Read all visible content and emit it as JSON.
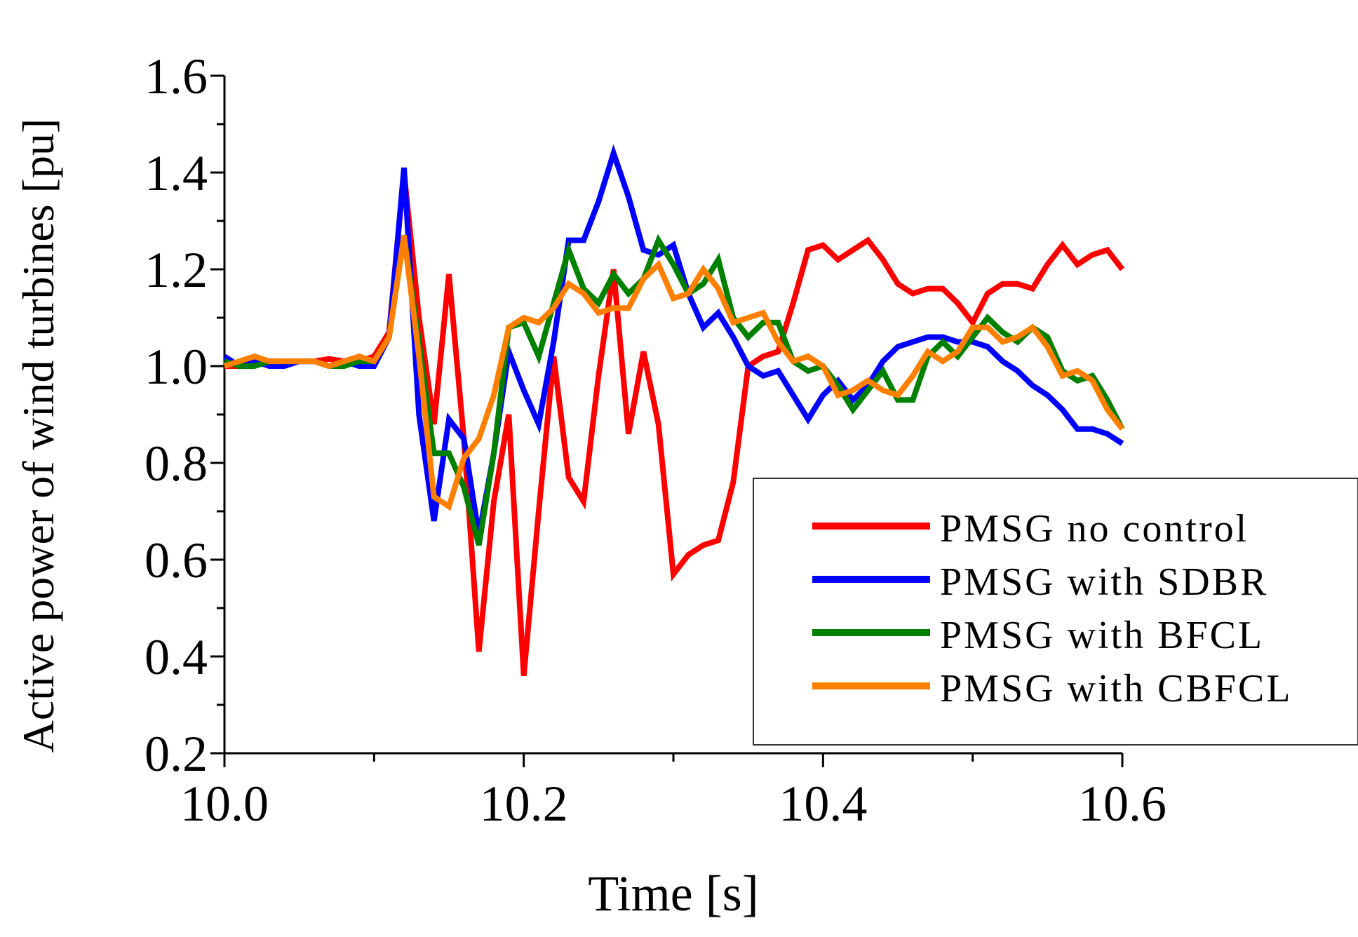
{
  "chart_data": {
    "type": "line",
    "xlabel": "Time [s]",
    "ylabel": "Active power of wind turbines [pu]",
    "xlim": [
      10.0,
      10.6
    ],
    "ylim": [
      0.2,
      1.6
    ],
    "x_ticks": [
      "10.0",
      "10.2",
      "10.4",
      "10.6"
    ],
    "y_ticks": [
      "0.2",
      "0.4",
      "0.6",
      "0.8",
      "1.0",
      "1.2",
      "1.4",
      "1.6"
    ],
    "legend_position": "bottom-right",
    "grid": false,
    "series": [
      {
        "name": "PMSG no control",
        "color": "#ff0000",
        "points": [
          [
            10.0,
            1.0
          ],
          [
            10.01,
            1.0
          ],
          [
            10.02,
            1.01
          ],
          [
            10.03,
            1.01
          ],
          [
            10.04,
            1.01
          ],
          [
            10.05,
            1.01
          ],
          [
            10.06,
            1.01
          ],
          [
            10.07,
            1.015
          ],
          [
            10.08,
            1.01
          ],
          [
            10.09,
            1.01
          ],
          [
            10.1,
            1.02
          ],
          [
            10.11,
            1.07
          ],
          [
            10.12,
            1.4
          ],
          [
            10.13,
            1.1
          ],
          [
            10.14,
            0.88
          ],
          [
            10.15,
            1.19
          ],
          [
            10.16,
            0.85
          ],
          [
            10.17,
            0.41
          ],
          [
            10.18,
            0.72
          ],
          [
            10.19,
            0.9
          ],
          [
            10.2,
            0.36
          ],
          [
            10.21,
            0.7
          ],
          [
            10.22,
            1.02
          ],
          [
            10.23,
            0.77
          ],
          [
            10.24,
            0.72
          ],
          [
            10.25,
            0.98
          ],
          [
            10.26,
            1.2
          ],
          [
            10.27,
            0.86
          ],
          [
            10.28,
            1.03
          ],
          [
            10.29,
            0.88
          ],
          [
            10.3,
            0.57
          ],
          [
            10.31,
            0.61
          ],
          [
            10.32,
            0.63
          ],
          [
            10.33,
            0.64
          ],
          [
            10.34,
            0.76
          ],
          [
            10.35,
            1.0
          ],
          [
            10.36,
            1.02
          ],
          [
            10.37,
            1.03
          ],
          [
            10.38,
            1.13
          ],
          [
            10.39,
            1.24
          ],
          [
            10.4,
            1.25
          ],
          [
            10.41,
            1.22
          ],
          [
            10.42,
            1.24
          ],
          [
            10.43,
            1.26
          ],
          [
            10.44,
            1.22
          ],
          [
            10.45,
            1.17
          ],
          [
            10.46,
            1.15
          ],
          [
            10.47,
            1.16
          ],
          [
            10.48,
            1.16
          ],
          [
            10.49,
            1.13
          ],
          [
            10.5,
            1.09
          ],
          [
            10.51,
            1.15
          ],
          [
            10.52,
            1.17
          ],
          [
            10.53,
            1.17
          ],
          [
            10.54,
            1.16
          ],
          [
            10.55,
            1.21
          ],
          [
            10.56,
            1.25
          ],
          [
            10.57,
            1.21
          ],
          [
            10.58,
            1.23
          ],
          [
            10.59,
            1.24
          ],
          [
            10.6,
            1.2
          ]
        ]
      },
      {
        "name": "PMSG with SDBR",
        "color": "#0000ff",
        "points": [
          [
            10.0,
            1.02
          ],
          [
            10.01,
            1.0
          ],
          [
            10.02,
            1.01
          ],
          [
            10.03,
            1.0
          ],
          [
            10.04,
            1.0
          ],
          [
            10.05,
            1.01
          ],
          [
            10.06,
            1.01
          ],
          [
            10.07,
            1.0
          ],
          [
            10.08,
            1.01
          ],
          [
            10.09,
            1.0
          ],
          [
            10.1,
            1.0
          ],
          [
            10.11,
            1.06
          ],
          [
            10.12,
            1.41
          ],
          [
            10.13,
            0.9
          ],
          [
            10.14,
            0.68
          ],
          [
            10.15,
            0.89
          ],
          [
            10.16,
            0.85
          ],
          [
            10.17,
            0.65
          ],
          [
            10.18,
            0.82
          ],
          [
            10.19,
            1.03
          ],
          [
            10.2,
            0.95
          ],
          [
            10.21,
            0.88
          ],
          [
            10.22,
            1.05
          ],
          [
            10.23,
            1.26
          ],
          [
            10.24,
            1.26
          ],
          [
            10.25,
            1.34
          ],
          [
            10.26,
            1.44
          ],
          [
            10.27,
            1.35
          ],
          [
            10.28,
            1.24
          ],
          [
            10.29,
            1.23
          ],
          [
            10.3,
            1.25
          ],
          [
            10.31,
            1.15
          ],
          [
            10.32,
            1.08
          ],
          [
            10.33,
            1.11
          ],
          [
            10.34,
            1.06
          ],
          [
            10.35,
            1.0
          ],
          [
            10.36,
            0.98
          ],
          [
            10.37,
            0.99
          ],
          [
            10.38,
            0.94
          ],
          [
            10.39,
            0.89
          ],
          [
            10.4,
            0.94
          ],
          [
            10.41,
            0.97
          ],
          [
            10.42,
            0.93
          ],
          [
            10.43,
            0.96
          ],
          [
            10.44,
            1.01
          ],
          [
            10.45,
            1.04
          ],
          [
            10.46,
            1.05
          ],
          [
            10.47,
            1.06
          ],
          [
            10.48,
            1.06
          ],
          [
            10.49,
            1.05
          ],
          [
            10.5,
            1.05
          ],
          [
            10.51,
            1.04
          ],
          [
            10.52,
            1.01
          ],
          [
            10.53,
            0.99
          ],
          [
            10.54,
            0.96
          ],
          [
            10.55,
            0.94
          ],
          [
            10.56,
            0.91
          ],
          [
            10.57,
            0.87
          ],
          [
            10.58,
            0.87
          ],
          [
            10.59,
            0.86
          ],
          [
            10.6,
            0.84
          ]
        ]
      },
      {
        "name": "PMSG with BFCL",
        "color": "#008000",
        "points": [
          [
            10.0,
            1.01
          ],
          [
            10.01,
            1.0
          ],
          [
            10.02,
            1.0
          ],
          [
            10.03,
            1.01
          ],
          [
            10.04,
            1.01
          ],
          [
            10.05,
            1.01
          ],
          [
            10.06,
            1.01
          ],
          [
            10.07,
            1.0
          ],
          [
            10.08,
            1.0
          ],
          [
            10.09,
            1.01
          ],
          [
            10.1,
            1.01
          ],
          [
            10.11,
            1.06
          ],
          [
            10.12,
            1.27
          ],
          [
            10.13,
            1.05
          ],
          [
            10.14,
            0.82
          ],
          [
            10.15,
            0.82
          ],
          [
            10.16,
            0.75
          ],
          [
            10.17,
            0.63
          ],
          [
            10.18,
            0.82
          ],
          [
            10.19,
            1.08
          ],
          [
            10.2,
            1.09
          ],
          [
            10.21,
            1.02
          ],
          [
            10.22,
            1.13
          ],
          [
            10.23,
            1.24
          ],
          [
            10.24,
            1.16
          ],
          [
            10.25,
            1.13
          ],
          [
            10.26,
            1.19
          ],
          [
            10.27,
            1.15
          ],
          [
            10.28,
            1.18
          ],
          [
            10.29,
            1.26
          ],
          [
            10.3,
            1.21
          ],
          [
            10.31,
            1.15
          ],
          [
            10.32,
            1.17
          ],
          [
            10.33,
            1.22
          ],
          [
            10.34,
            1.1
          ],
          [
            10.35,
            1.06
          ],
          [
            10.36,
            1.09
          ],
          [
            10.37,
            1.09
          ],
          [
            10.38,
            1.01
          ],
          [
            10.39,
            0.99
          ],
          [
            10.4,
            1.0
          ],
          [
            10.41,
            0.96
          ],
          [
            10.42,
            0.91
          ],
          [
            10.43,
            0.95
          ],
          [
            10.44,
            0.99
          ],
          [
            10.45,
            0.93
          ],
          [
            10.46,
            0.93
          ],
          [
            10.47,
            1.02
          ],
          [
            10.48,
            1.05
          ],
          [
            10.49,
            1.02
          ],
          [
            10.5,
            1.06
          ],
          [
            10.51,
            1.1
          ],
          [
            10.52,
            1.07
          ],
          [
            10.53,
            1.05
          ],
          [
            10.54,
            1.08
          ],
          [
            10.55,
            1.06
          ],
          [
            10.56,
            0.99
          ],
          [
            10.57,
            0.97
          ],
          [
            10.58,
            0.98
          ],
          [
            10.59,
            0.93
          ],
          [
            10.6,
            0.87
          ]
        ]
      },
      {
        "name": "PMSG with CBFCL",
        "color": "#ff8000",
        "points": [
          [
            10.0,
            1.0
          ],
          [
            10.01,
            1.01
          ],
          [
            10.02,
            1.02
          ],
          [
            10.03,
            1.01
          ],
          [
            10.04,
            1.01
          ],
          [
            10.05,
            1.01
          ],
          [
            10.06,
            1.01
          ],
          [
            10.07,
            1.0
          ],
          [
            10.08,
            1.01
          ],
          [
            10.09,
            1.02
          ],
          [
            10.1,
            1.01
          ],
          [
            10.11,
            1.06
          ],
          [
            10.12,
            1.27
          ],
          [
            10.13,
            1.02
          ],
          [
            10.14,
            0.73
          ],
          [
            10.15,
            0.71
          ],
          [
            10.16,
            0.81
          ],
          [
            10.17,
            0.85
          ],
          [
            10.18,
            0.94
          ],
          [
            10.19,
            1.08
          ],
          [
            10.2,
            1.1
          ],
          [
            10.21,
            1.09
          ],
          [
            10.22,
            1.12
          ],
          [
            10.23,
            1.17
          ],
          [
            10.24,
            1.15
          ],
          [
            10.25,
            1.11
          ],
          [
            10.26,
            1.12
          ],
          [
            10.27,
            1.12
          ],
          [
            10.28,
            1.18
          ],
          [
            10.29,
            1.21
          ],
          [
            10.3,
            1.14
          ],
          [
            10.31,
            1.15
          ],
          [
            10.32,
            1.2
          ],
          [
            10.33,
            1.16
          ],
          [
            10.34,
            1.09
          ],
          [
            10.35,
            1.1
          ],
          [
            10.36,
            1.11
          ],
          [
            10.37,
            1.05
          ],
          [
            10.38,
            1.01
          ],
          [
            10.39,
            1.02
          ],
          [
            10.4,
            1.0
          ],
          [
            10.41,
            0.94
          ],
          [
            10.42,
            0.95
          ],
          [
            10.43,
            0.97
          ],
          [
            10.44,
            0.95
          ],
          [
            10.45,
            0.94
          ],
          [
            10.46,
            0.98
          ],
          [
            10.47,
            1.03
          ],
          [
            10.48,
            1.01
          ],
          [
            10.49,
            1.03
          ],
          [
            10.5,
            1.08
          ],
          [
            10.51,
            1.08
          ],
          [
            10.52,
            1.05
          ],
          [
            10.53,
            1.06
          ],
          [
            10.54,
            1.08
          ],
          [
            10.55,
            1.04
          ],
          [
            10.56,
            0.98
          ],
          [
            10.57,
            0.99
          ],
          [
            10.58,
            0.97
          ],
          [
            10.59,
            0.91
          ],
          [
            10.6,
            0.87
          ]
        ]
      }
    ]
  }
}
